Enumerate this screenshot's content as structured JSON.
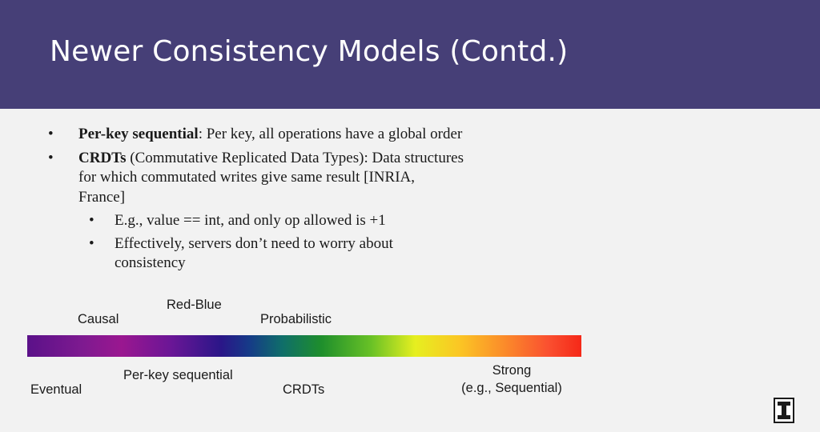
{
  "slide": {
    "title": "Newer Consistency Models (Contd.)",
    "bullets": {
      "b1_bold": "Per-key sequential",
      "b1_text": ": Per key, all operations have a global order",
      "b2_bold": "CRDTs",
      "b2_text": " (Commutative Replicated Data Types): Data structures for which commutated writes give same result [INRIA, France]",
      "sub1": "E.g., value == int, and only op allowed is +1",
      "sub2": "Effectively, servers don’t need to worry about consistency"
    },
    "bullet_char": "•",
    "spectrum_labels": {
      "red_blue": "Red-Blue",
      "causal": "Causal",
      "probabilistic": "Probabilistic",
      "eventual": "Eventual",
      "per_key": "Per-key sequential",
      "crdts": "CRDTs",
      "strong_line1": "Strong",
      "strong_line2": "(e.g., Sequential)"
    }
  },
  "colors": {
    "header": "#463f77",
    "background": "#f2f2f2"
  },
  "icons": {
    "logo": "university-block-i-logo"
  }
}
